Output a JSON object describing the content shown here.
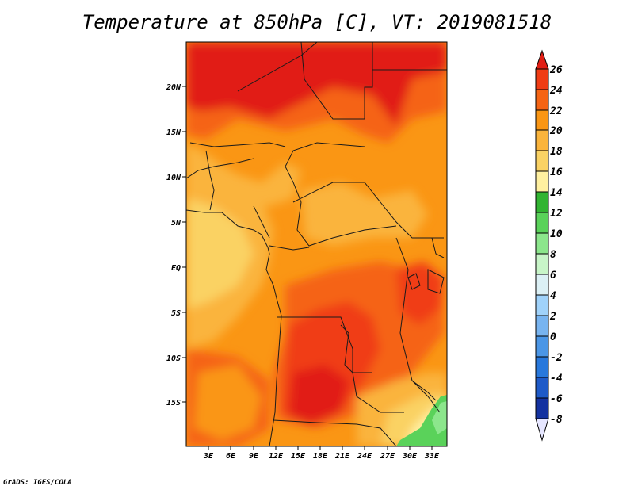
{
  "title": "Temperature at 850hPa [C], VT: 2019081518",
  "footer": "GrADS: IGES/COLA",
  "map": {
    "lon_range": [
      0,
      35
    ],
    "lat_range": [
      -20,
      25
    ],
    "lat_ticks": [
      "20N",
      "15N",
      "10N",
      "5N",
      "EQ",
      "5S",
      "10S",
      "15S"
    ],
    "lon_ticks": [
      "3E",
      "6E",
      "9E",
      "12E",
      "15E",
      "18E",
      "21E",
      "24E",
      "27E",
      "30E",
      "33E"
    ]
  },
  "colorbar": {
    "levels": [
      "26",
      "24",
      "22",
      "20",
      "18",
      "16",
      "14",
      "12",
      "10",
      "8",
      "6",
      "4",
      "2",
      "0",
      "-2",
      "-4",
      "-6",
      "-8"
    ],
    "colors": {
      "above_26": "#e11e14",
      "24_26": "#f03c14",
      "22_24": "#f56414",
      "20_22": "#fa9614",
      "18_20": "#fab43c",
      "16_18": "#fad264",
      "14_16": "#fff0a0",
      "12_14": "#32b432",
      "10_12": "#5ad25a",
      "8_10": "#8ce68c",
      "6_8": "#c8f5c8",
      "4_6": "#dcf0f5",
      "2_4": "#a0d2fa",
      "0_2": "#78b4f0",
      "-2_0": "#4b96e6",
      "-4_-2": "#2878dc",
      "-6_-4": "#1e5ac8",
      "-8_-6": "#1432a0",
      "below_-8": "#0a1464"
    }
  }
}
